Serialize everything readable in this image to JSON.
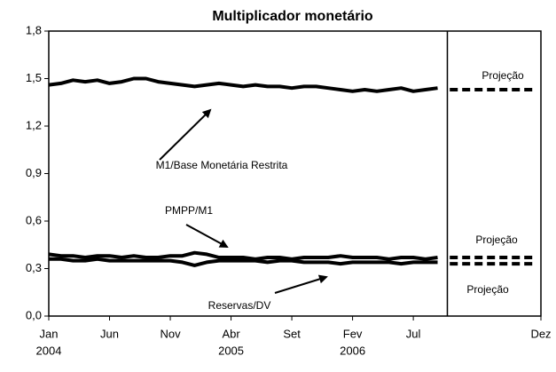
{
  "chart_data": {
    "type": "line",
    "title": "Multiplicador monetário",
    "xlim": [
      0,
      40.5
    ],
    "xticks": [
      {
        "value": 0,
        "label": "Jan",
        "year": "2004"
      },
      {
        "value": 5,
        "label": "Jun"
      },
      {
        "value": 10,
        "label": "Nov"
      },
      {
        "value": 15,
        "label": "Abr",
        "year": "2005"
      },
      {
        "value": 20,
        "label": "Set"
      },
      {
        "value": 25,
        "label": "Fev",
        "year": "2006"
      },
      {
        "value": 30,
        "label": "Jul"
      },
      {
        "value": 40.5,
        "label": "Dez"
      }
    ],
    "ylim": [
      0,
      1.8
    ],
    "yticks": [
      {
        "value": 0,
        "label": "0,0"
      },
      {
        "value": 0.3,
        "label": "0,3"
      },
      {
        "value": 0.6,
        "label": "0,6"
      },
      {
        "value": 0.9,
        "label": "0,9"
      },
      {
        "value": 1.2,
        "label": "1,2"
      },
      {
        "value": 1.5,
        "label": "1,5"
      },
      {
        "value": 1.8,
        "label": "1,8"
      }
    ],
    "projection_start": 32.8,
    "series": [
      {
        "name": "M1/Base Monetária Restrita",
        "color": "#000000",
        "x": [
          0,
          1,
          2,
          3,
          4,
          5,
          6,
          7,
          8,
          9,
          10,
          11,
          12,
          13,
          14,
          15,
          16,
          17,
          18,
          19,
          20,
          21,
          22,
          23,
          24,
          25,
          26,
          27,
          28,
          29,
          30,
          31,
          32
        ],
        "values": [
          1.46,
          1.47,
          1.49,
          1.48,
          1.49,
          1.47,
          1.48,
          1.5,
          1.5,
          1.48,
          1.47,
          1.46,
          1.45,
          1.46,
          1.47,
          1.46,
          1.45,
          1.46,
          1.45,
          1.45,
          1.44,
          1.45,
          1.45,
          1.44,
          1.43,
          1.42,
          1.43,
          1.42,
          1.43,
          1.44,
          1.42,
          1.43,
          1.44
        ]
      },
      {
        "name": "PMPP/M1",
        "color": "#000000",
        "x": [
          0,
          1,
          2,
          3,
          4,
          5,
          6,
          7,
          8,
          9,
          10,
          11,
          12,
          13,
          14,
          15,
          16,
          17,
          18,
          19,
          20,
          21,
          22,
          23,
          24,
          25,
          26,
          27,
          28,
          29,
          30,
          31,
          32
        ],
        "values": [
          0.39,
          0.38,
          0.38,
          0.37,
          0.38,
          0.38,
          0.37,
          0.38,
          0.37,
          0.37,
          0.38,
          0.38,
          0.4,
          0.39,
          0.37,
          0.37,
          0.37,
          0.36,
          0.37,
          0.37,
          0.36,
          0.37,
          0.37,
          0.37,
          0.38,
          0.37,
          0.37,
          0.37,
          0.36,
          0.37,
          0.37,
          0.36,
          0.37
        ]
      },
      {
        "name": "Reservas/DV",
        "color": "#000000",
        "x": [
          0,
          1,
          2,
          3,
          4,
          5,
          6,
          7,
          8,
          9,
          10,
          11,
          12,
          13,
          14,
          15,
          16,
          17,
          18,
          19,
          20,
          21,
          22,
          23,
          24,
          25,
          26,
          27,
          28,
          29,
          30,
          31,
          32
        ],
        "values": [
          0.36,
          0.36,
          0.35,
          0.35,
          0.36,
          0.35,
          0.35,
          0.35,
          0.35,
          0.35,
          0.35,
          0.34,
          0.32,
          0.34,
          0.35,
          0.35,
          0.35,
          0.35,
          0.34,
          0.35,
          0.35,
          0.34,
          0.34,
          0.34,
          0.33,
          0.34,
          0.34,
          0.34,
          0.34,
          0.33,
          0.34,
          0.34,
          0.34
        ]
      }
    ],
    "projections": [
      {
        "label": "Projeção",
        "color": "#000000",
        "x": [
          33,
          40
        ],
        "values": [
          1.43,
          1.43
        ]
      },
      {
        "label": "Projeção",
        "color": "#000000",
        "x": [
          33,
          40
        ],
        "values": [
          0.37,
          0.37
        ]
      },
      {
        "label": "Projeção",
        "color": "#000000",
        "x": [
          33,
          40
        ],
        "values": [
          0.33,
          0.33
        ]
      }
    ]
  }
}
